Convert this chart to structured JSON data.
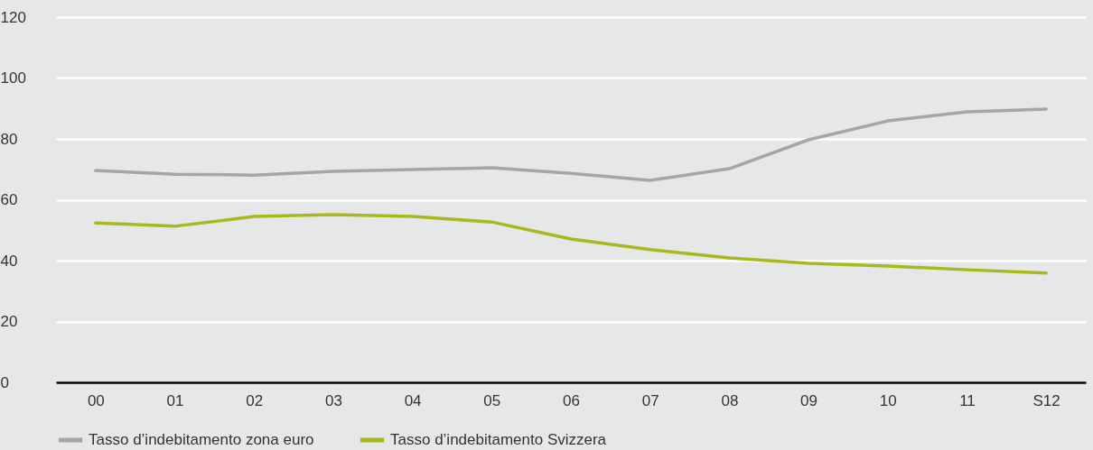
{
  "chart_data": {
    "type": "line",
    "categories": [
      "00",
      "01",
      "02",
      "03",
      "04",
      "05",
      "06",
      "07",
      "08",
      "09",
      "10",
      "11",
      "S12"
    ],
    "series": [
      {
        "name": "Tasso d’indebitamento zona euro",
        "color": "#a6a6a6",
        "values": [
          69.6,
          68.4,
          68.1,
          69.3,
          69.9,
          70.5,
          68.7,
          66.4,
          70.2,
          79.7,
          85.9,
          88.9,
          89.8
        ]
      },
      {
        "name": "Tasso d’indebitamento Svizzera",
        "color": "#a9b81c",
        "values": [
          52.4,
          51.3,
          54.5,
          55.1,
          54.5,
          52.7,
          47.1,
          43.6,
          40.9,
          39.1,
          38.2,
          37.0,
          35.9
        ]
      }
    ],
    "ylim": [
      0,
      120
    ],
    "yticks": [
      0,
      20,
      40,
      60,
      80,
      100,
      120
    ],
    "grid": "y",
    "legend": "bottom left"
  }
}
